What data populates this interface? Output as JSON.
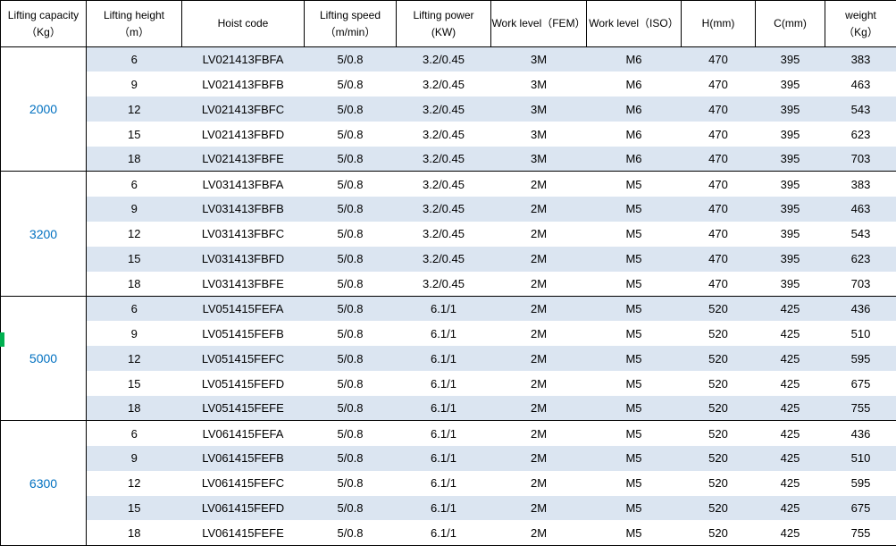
{
  "table": {
    "headers": [
      {
        "lines": [
          "Lifting capacity",
          "（Kg）"
        ]
      },
      {
        "lines": [
          "Lifting height",
          "（m）"
        ]
      },
      {
        "lines": [
          "Hoist code"
        ]
      },
      {
        "lines": [
          "Lifting speed",
          "（m/min）"
        ]
      },
      {
        "lines": [
          "Lifting power",
          "(KW)"
        ]
      },
      {
        "lines": [
          "Work level（FEM）"
        ]
      },
      {
        "lines": [
          "Work level（ISO）"
        ]
      },
      {
        "lines": [
          "H(mm)"
        ]
      },
      {
        "lines": [
          "C(mm)"
        ]
      },
      {
        "lines": [
          "weight",
          "（Kg）"
        ]
      }
    ],
    "groups": [
      {
        "capacity": "2000",
        "rows": [
          [
            "6",
            "LV021413FBFA",
            "5/0.8",
            "3.2/0.45",
            "3M",
            "M6",
            "470",
            "395",
            "383"
          ],
          [
            "9",
            "LV021413FBFB",
            "5/0.8",
            "3.2/0.45",
            "3M",
            "M6",
            "470",
            "395",
            "463"
          ],
          [
            "12",
            "LV021413FBFC",
            "5/0.8",
            "3.2/0.45",
            "3M",
            "M6",
            "470",
            "395",
            "543"
          ],
          [
            "15",
            "LV021413FBFD",
            "5/0.8",
            "3.2/0.45",
            "3M",
            "M6",
            "470",
            "395",
            "623"
          ],
          [
            "18",
            "LV021413FBFE",
            "5/0.8",
            "3.2/0.45",
            "3M",
            "M6",
            "470",
            "395",
            "703"
          ]
        ]
      },
      {
        "capacity": "3200",
        "rows": [
          [
            "6",
            "LV031413FBFA",
            "5/0.8",
            "3.2/0.45",
            "2M",
            "M5",
            "470",
            "395",
            "383"
          ],
          [
            "9",
            "LV031413FBFB",
            "5/0.8",
            "3.2/0.45",
            "2M",
            "M5",
            "470",
            "395",
            "463"
          ],
          [
            "12",
            "LV031413FBFC",
            "5/0.8",
            "3.2/0.45",
            "2M",
            "M5",
            "470",
            "395",
            "543"
          ],
          [
            "15",
            "LV031413FBFD",
            "5/0.8",
            "3.2/0.45",
            "2M",
            "M5",
            "470",
            "395",
            "623"
          ],
          [
            "18",
            "LV031413FBFE",
            "5/0.8",
            "3.2/0.45",
            "2M",
            "M5",
            "470",
            "395",
            "703"
          ]
        ]
      },
      {
        "capacity": "5000",
        "rows": [
          [
            "6",
            "LV051415FEFA",
            "5/0.8",
            "6.1/1",
            "2M",
            "M5",
            "520",
            "425",
            "436"
          ],
          [
            "9",
            "LV051415FEFB",
            "5/0.8",
            "6.1/1",
            "2M",
            "M5",
            "520",
            "425",
            "510"
          ],
          [
            "12",
            "LV051415FEFC",
            "5/0.8",
            "6.1/1",
            "2M",
            "M5",
            "520",
            "425",
            "595"
          ],
          [
            "15",
            "LV051415FEFD",
            "5/0.8",
            "6.1/1",
            "2M",
            "M5",
            "520",
            "425",
            "675"
          ],
          [
            "18",
            "LV051415FEFE",
            "5/0.8",
            "6.1/1",
            "2M",
            "M5",
            "520",
            "425",
            "755"
          ]
        ]
      },
      {
        "capacity": "6300",
        "rows": [
          [
            "6",
            "LV061415FEFA",
            "5/0.8",
            "6.1/1",
            "2M",
            "M5",
            "520",
            "425",
            "436"
          ],
          [
            "9",
            "LV061415FEFB",
            "5/0.8",
            "6.1/1",
            "2M",
            "M5",
            "520",
            "425",
            "510"
          ],
          [
            "12",
            "LV061415FEFC",
            "5/0.8",
            "6.1/1",
            "2M",
            "M5",
            "520",
            "425",
            "595"
          ],
          [
            "15",
            "LV061415FEFD",
            "5/0.8",
            "6.1/1",
            "2M",
            "M5",
            "520",
            "425",
            "675"
          ],
          [
            "18",
            "LV061415FEFE",
            "5/0.8",
            "6.1/1",
            "2M",
            "M5",
            "520",
            "425",
            "755"
          ]
        ]
      }
    ]
  },
  "colors": {
    "stripe": "#dbe5f1",
    "capacity_text": "#0070c0",
    "border": "#000000",
    "left_edge_marker": "#00b050",
    "background": "#ffffff"
  }
}
